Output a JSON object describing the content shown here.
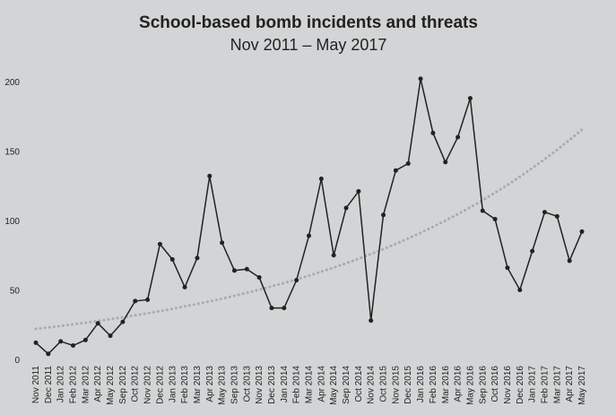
{
  "chart_data": {
    "type": "line",
    "title": "School-based bomb incidents and threats",
    "subtitle": "Nov 2011 – May 2017",
    "categories": [
      "Nov 2011",
      "Dec 2011",
      "Jan 2012",
      "Feb 2012",
      "Mar 2012",
      "Apr 2012",
      "May 2012",
      "Sep 2012",
      "Oct 2012",
      "Nov 2012",
      "Dec 2012",
      "Jan 2013",
      "Feb 2013",
      "Mar 2013",
      "Apr 2013",
      "May 2013",
      "Sep 2013",
      "Oct 2013",
      "Nov 2013",
      "Dec 2013",
      "Jan 2014",
      "Feb 2014",
      "Mar 2014",
      "Apr 2014",
      "May 2014",
      "Sep 2014",
      "Oct 2014",
      "Nov 2014",
      "Oct 2015",
      "Nov 2015",
      "Dec 2015",
      "Jan 2016",
      "Feb 2016",
      "Mar 2016",
      "Apr 2016",
      "May 2016",
      "Sep 2016",
      "Oct 2016",
      "Nov 2016",
      "Dec 2016",
      "Jan 2017",
      "Feb 2017",
      "Mar 2017",
      "Apr 2017",
      "May 2017"
    ],
    "series": [
      {
        "color": "#222222",
        "markers": true,
        "style": "solid",
        "values": [
          12,
          4,
          13,
          10,
          14,
          26,
          17,
          27,
          42,
          43,
          83,
          72,
          52,
          73,
          132,
          84,
          64,
          65,
          59,
          37,
          37,
          57,
          89,
          130,
          75,
          109,
          121,
          28,
          104,
          136,
          141,
          202,
          163,
          142,
          160,
          188,
          107,
          101,
          66,
          50,
          78,
          106,
          103,
          71,
          92
        ]
      },
      {
        "color": "#a9aaab",
        "markers": false,
        "style": "dotted",
        "values": [
          22.0,
          23.0,
          24.1,
          25.3,
          26.4,
          27.7,
          29.0,
          30.3,
          31.8,
          33.2,
          34.8,
          36.4,
          38.2,
          39.9,
          41.8,
          43.8,
          45.8,
          48.0,
          50.2,
          52.6,
          55.0,
          57.6,
          60.3,
          63.2,
          66.1,
          69.2,
          72.5,
          75.9,
          79.4,
          83.2,
          87.1,
          91.1,
          95.4,
          99.9,
          104.6,
          109.5,
          114.6,
          120.0,
          125.6,
          131.5,
          137.7,
          144.1,
          150.9,
          158.0,
          165.4
        ]
      }
    ],
    "ylim": [
      0,
      200
    ],
    "yticks": [
      0,
      50,
      100,
      150,
      200
    ],
    "grid": false
  }
}
